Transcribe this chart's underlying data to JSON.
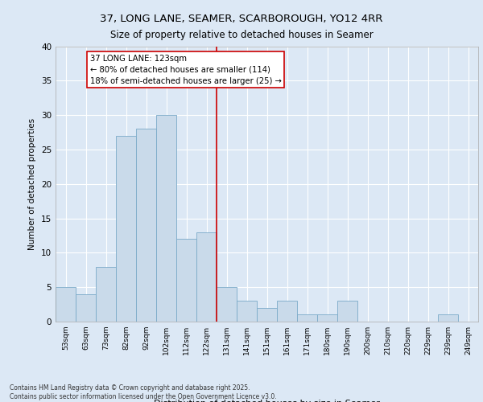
{
  "title1": "37, LONG LANE, SEAMER, SCARBOROUGH, YO12 4RR",
  "title2": "Size of property relative to detached houses in Seamer",
  "xlabel": "Distribution of detached houses by size in Seamer",
  "ylabel": "Number of detached properties",
  "categories": [
    "53sqm",
    "63sqm",
    "73sqm",
    "82sqm",
    "92sqm",
    "102sqm",
    "112sqm",
    "122sqm",
    "131sqm",
    "141sqm",
    "151sqm",
    "161sqm",
    "171sqm",
    "180sqm",
    "190sqm",
    "200sqm",
    "210sqm",
    "220sqm",
    "229sqm",
    "239sqm",
    "249sqm"
  ],
  "values": [
    5,
    4,
    8,
    27,
    28,
    30,
    12,
    13,
    5,
    3,
    2,
    3,
    1,
    1,
    3,
    0,
    0,
    0,
    0,
    1,
    0
  ],
  "bar_color": "#c9daea",
  "bar_edge_color": "#7aaac8",
  "vline_x": 7.5,
  "vline_color": "#cc0000",
  "annotation_text": "37 LONG LANE: 123sqm\n← 80% of detached houses are smaller (114)\n18% of semi-detached houses are larger (25) →",
  "annotation_box_color": "#ffffff",
  "annotation_box_edge_color": "#cc0000",
  "bg_color": "#dce8f5",
  "plot_bg_color": "#dce8f5",
  "grid_color": "#ffffff",
  "ylim": [
    0,
    40
  ],
  "yticks": [
    0,
    5,
    10,
    15,
    20,
    25,
    30,
    35,
    40
  ],
  "footer1": "Contains HM Land Registry data © Crown copyright and database right 2025.",
  "footer2": "Contains public sector information licensed under the Open Government Licence v3.0."
}
